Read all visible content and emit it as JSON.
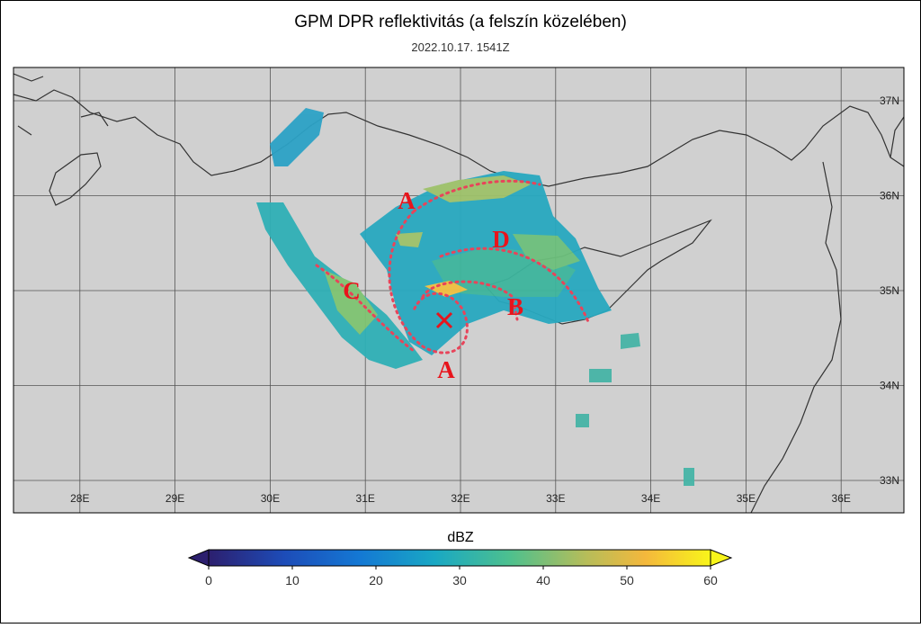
{
  "title": "GPM DPR reflektivitás (a felszín közelében)",
  "subtitle": "2022.10.17. 1541Z",
  "map": {
    "lon_ticks": [
      {
        "value": 28,
        "label": "28E"
      },
      {
        "value": 29,
        "label": "29E"
      },
      {
        "value": 30,
        "label": "30E"
      },
      {
        "value": 31,
        "label": "31E"
      },
      {
        "value": 32,
        "label": "32E"
      },
      {
        "value": 33,
        "label": "33E"
      },
      {
        "value": 34,
        "label": "34E"
      },
      {
        "value": 35,
        "label": "35E"
      },
      {
        "value": 36,
        "label": "36E"
      }
    ],
    "lat_ticks": [
      {
        "value": 37,
        "label": "37N"
      },
      {
        "value": 36,
        "label": "36N"
      },
      {
        "value": 35,
        "label": "35N"
      },
      {
        "value": 34,
        "label": "34N"
      },
      {
        "value": 33,
        "label": "33N"
      }
    ],
    "annotations": [
      "A",
      "A",
      "B",
      "C",
      "D"
    ]
  },
  "colorbar": {
    "label": "dBZ",
    "lim": [
      0,
      60
    ],
    "ticks": [
      0,
      10,
      20,
      30,
      40,
      50,
      60
    ]
  }
}
